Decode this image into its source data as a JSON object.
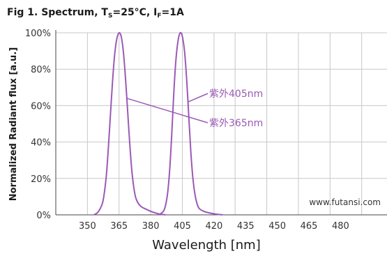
{
  "chart_data": {
    "type": "line",
    "title": {
      "main": "Fig 1. Spectrum, T",
      "sub1": "S",
      "mid": "=25°C, I",
      "sub2": "F",
      "end": "=1A"
    },
    "xlabel": "Wavelength [nm]",
    "ylabel": "Normalized Radiant flux [a.u.]",
    "xlim": [
      335,
      492
    ],
    "ylim": [
      0,
      100
    ],
    "x_ticks": [
      350,
      365,
      380,
      395,
      410,
      420,
      435,
      450,
      465,
      480
    ],
    "x_tick_labels": [
      "350",
      "365",
      "380",
      "405",
      "420",
      "435",
      "450",
      "465",
      "480"
    ],
    "x_tick_label_positions": [
      350,
      365,
      380,
      395,
      410,
      425,
      440,
      455,
      470
    ],
    "y_ticks": [
      0,
      20,
      40,
      60,
      80,
      100
    ],
    "y_tick_labels": [
      "0%",
      "20%",
      "40%",
      "60%",
      "80%",
      "100%"
    ],
    "grid": true,
    "line_color": "#9b59b6",
    "series": [
      {
        "name": "紫外365nm",
        "x": [
          353,
          355,
          357,
          358,
          359,
          360,
          361,
          362,
          363,
          364,
          365,
          366,
          367,
          368,
          369,
          370,
          371,
          372,
          373,
          375,
          378,
          381,
          384,
          387
        ],
        "y": [
          0,
          1.5,
          6,
          12,
          22,
          38,
          57,
          75,
          89,
          97,
          100,
          98,
          90,
          76,
          58,
          40,
          25,
          15,
          9,
          5,
          3,
          1.5,
          0.5,
          0
        ]
      },
      {
        "name": "紫外405nm",
        "x": [
          384,
          386,
          387,
          388,
          389,
          390,
          391,
          392,
          393,
          394,
          395,
          396,
          397,
          398,
          399,
          400,
          401,
          402,
          403,
          405,
          408,
          411,
          414
        ],
        "y": [
          0,
          2,
          5,
          12,
          25,
          45,
          68,
          86,
          96,
          100,
          98,
          90,
          75,
          55,
          35,
          20,
          11,
          6,
          3.5,
          2,
          1,
          0.4,
          0
        ]
      }
    ],
    "annotations": [
      {
        "text": "紫外405nm",
        "target": 1
      },
      {
        "text": "紫外365nm",
        "target": 0
      }
    ],
    "watermark": "www.futansi.com"
  }
}
